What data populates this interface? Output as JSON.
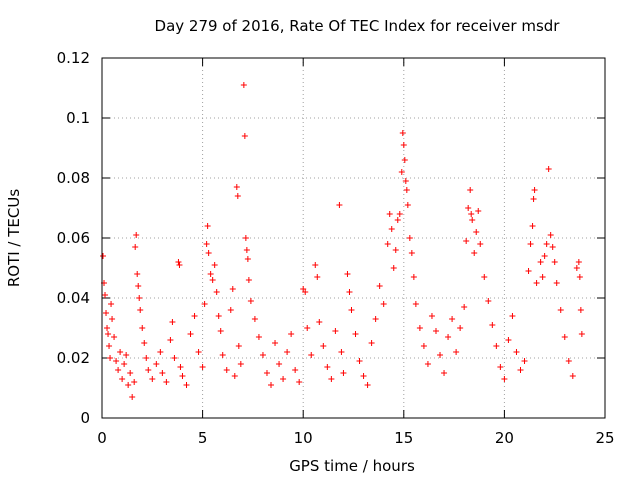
{
  "chart_data": {
    "type": "scatter",
    "title": "Day 279 of 2016, Rate Of TEC Index for receiver msdr",
    "xlabel": "GPS time / hours",
    "ylabel": "ROTI / TECUs",
    "xlim": [
      0,
      25
    ],
    "ylim": [
      0,
      0.12
    ],
    "x_ticks": [
      0,
      5,
      10,
      15,
      20,
      25
    ],
    "x_tick_labels": [
      "0",
      "5",
      "10",
      "15",
      "20",
      "25"
    ],
    "y_ticks": [
      0,
      0.02,
      0.04,
      0.06,
      0.08,
      0.1,
      0.12
    ],
    "y_tick_labels": [
      "0",
      "0.02",
      "0.04",
      "0.06",
      "0.08",
      "0.1",
      "0.12"
    ],
    "grid": true,
    "marker": "+",
    "color": "#ff0000",
    "series": [
      {
        "name": "ROTI",
        "points": [
          [
            0.05,
            0.054
          ],
          [
            0.1,
            0.045
          ],
          [
            0.15,
            0.041
          ],
          [
            0.2,
            0.035
          ],
          [
            0.25,
            0.03
          ],
          [
            0.3,
            0.028
          ],
          [
            0.35,
            0.024
          ],
          [
            0.4,
            0.02
          ],
          [
            0.45,
            0.038
          ],
          [
            0.5,
            0.033
          ],
          [
            0.6,
            0.027
          ],
          [
            0.7,
            0.019
          ],
          [
            0.8,
            0.016
          ],
          [
            0.9,
            0.022
          ],
          [
            1.0,
            0.013
          ],
          [
            1.1,
            0.018
          ],
          [
            1.2,
            0.021
          ],
          [
            1.3,
            0.011
          ],
          [
            1.4,
            0.015
          ],
          [
            1.5,
            0.007
          ],
          [
            1.6,
            0.012
          ],
          [
            1.65,
            0.057
          ],
          [
            1.7,
            0.061
          ],
          [
            1.75,
            0.048
          ],
          [
            1.8,
            0.044
          ],
          [
            1.85,
            0.04
          ],
          [
            1.9,
            0.036
          ],
          [
            2.0,
            0.03
          ],
          [
            2.1,
            0.025
          ],
          [
            2.2,
            0.02
          ],
          [
            2.3,
            0.016
          ],
          [
            2.5,
            0.013
          ],
          [
            2.7,
            0.018
          ],
          [
            2.9,
            0.022
          ],
          [
            3.0,
            0.015
          ],
          [
            3.2,
            0.012
          ],
          [
            3.4,
            0.026
          ],
          [
            3.5,
            0.032
          ],
          [
            3.6,
            0.02
          ],
          [
            3.8,
            0.052
          ],
          [
            3.85,
            0.051
          ],
          [
            3.9,
            0.017
          ],
          [
            4.0,
            0.014
          ],
          [
            4.2,
            0.011
          ],
          [
            4.4,
            0.028
          ],
          [
            4.6,
            0.034
          ],
          [
            4.8,
            0.022
          ],
          [
            5.0,
            0.017
          ],
          [
            5.1,
            0.038
          ],
          [
            5.2,
            0.058
          ],
          [
            5.25,
            0.064
          ],
          [
            5.3,
            0.055
          ],
          [
            5.4,
            0.048
          ],
          [
            5.5,
            0.046
          ],
          [
            5.6,
            0.051
          ],
          [
            5.7,
            0.042
          ],
          [
            5.8,
            0.034
          ],
          [
            5.9,
            0.029
          ],
          [
            6.0,
            0.021
          ],
          [
            6.2,
            0.016
          ],
          [
            6.4,
            0.036
          ],
          [
            6.5,
            0.043
          ],
          [
            6.6,
            0.014
          ],
          [
            6.7,
            0.077
          ],
          [
            6.75,
            0.074
          ],
          [
            6.8,
            0.024
          ],
          [
            6.9,
            0.018
          ],
          [
            7.05,
            0.111
          ],
          [
            7.1,
            0.094
          ],
          [
            7.15,
            0.06
          ],
          [
            7.2,
            0.056
          ],
          [
            7.25,
            0.053
          ],
          [
            7.3,
            0.046
          ],
          [
            7.4,
            0.039
          ],
          [
            7.6,
            0.033
          ],
          [
            7.8,
            0.027
          ],
          [
            8.0,
            0.021
          ],
          [
            8.2,
            0.015
          ],
          [
            8.4,
            0.011
          ],
          [
            8.6,
            0.025
          ],
          [
            8.8,
            0.018
          ],
          [
            9.0,
            0.013
          ],
          [
            9.2,
            0.022
          ],
          [
            9.4,
            0.028
          ],
          [
            9.6,
            0.016
          ],
          [
            9.8,
            0.012
          ],
          [
            10.0,
            0.043
          ],
          [
            10.1,
            0.042
          ],
          [
            10.2,
            0.03
          ],
          [
            10.4,
            0.021
          ],
          [
            10.6,
            0.051
          ],
          [
            10.7,
            0.047
          ],
          [
            10.8,
            0.032
          ],
          [
            11.0,
            0.024
          ],
          [
            11.2,
            0.017
          ],
          [
            11.4,
            0.013
          ],
          [
            11.6,
            0.029
          ],
          [
            11.8,
            0.071
          ],
          [
            11.9,
            0.022
          ],
          [
            12.0,
            0.015
          ],
          [
            12.2,
            0.048
          ],
          [
            12.3,
            0.042
          ],
          [
            12.4,
            0.036
          ],
          [
            12.6,
            0.028
          ],
          [
            12.8,
            0.019
          ],
          [
            13.0,
            0.014
          ],
          [
            13.2,
            0.011
          ],
          [
            13.4,
            0.025
          ],
          [
            13.6,
            0.033
          ],
          [
            13.8,
            0.044
          ],
          [
            14.0,
            0.038
          ],
          [
            14.2,
            0.058
          ],
          [
            14.3,
            0.068
          ],
          [
            14.4,
            0.063
          ],
          [
            14.5,
            0.05
          ],
          [
            14.6,
            0.056
          ],
          [
            14.7,
            0.066
          ],
          [
            14.8,
            0.068
          ],
          [
            14.9,
            0.082
          ],
          [
            14.95,
            0.095
          ],
          [
            15.0,
            0.091
          ],
          [
            15.05,
            0.086
          ],
          [
            15.1,
            0.079
          ],
          [
            15.15,
            0.076
          ],
          [
            15.2,
            0.071
          ],
          [
            15.3,
            0.06
          ],
          [
            15.4,
            0.055
          ],
          [
            15.5,
            0.047
          ],
          [
            15.6,
            0.038
          ],
          [
            15.8,
            0.03
          ],
          [
            16.0,
            0.024
          ],
          [
            16.2,
            0.018
          ],
          [
            16.4,
            0.034
          ],
          [
            16.6,
            0.029
          ],
          [
            16.8,
            0.021
          ],
          [
            17.0,
            0.015
          ],
          [
            17.2,
            0.027
          ],
          [
            17.4,
            0.033
          ],
          [
            17.6,
            0.022
          ],
          [
            17.8,
            0.03
          ],
          [
            18.0,
            0.037
          ],
          [
            18.1,
            0.059
          ],
          [
            18.2,
            0.07
          ],
          [
            18.3,
            0.076
          ],
          [
            18.35,
            0.068
          ],
          [
            18.4,
            0.066
          ],
          [
            18.5,
            0.055
          ],
          [
            18.6,
            0.062
          ],
          [
            18.7,
            0.069
          ],
          [
            18.8,
            0.058
          ],
          [
            19.0,
            0.047
          ],
          [
            19.2,
            0.039
          ],
          [
            19.4,
            0.031
          ],
          [
            19.6,
            0.024
          ],
          [
            19.8,
            0.017
          ],
          [
            20.0,
            0.013
          ],
          [
            20.2,
            0.026
          ],
          [
            20.4,
            0.034
          ],
          [
            20.6,
            0.022
          ],
          [
            20.8,
            0.016
          ],
          [
            21.0,
            0.019
          ],
          [
            21.2,
            0.049
          ],
          [
            21.3,
            0.058
          ],
          [
            21.4,
            0.064
          ],
          [
            21.45,
            0.073
          ],
          [
            21.5,
            0.076
          ],
          [
            21.6,
            0.045
          ],
          [
            21.8,
            0.052
          ],
          [
            21.9,
            0.047
          ],
          [
            22.0,
            0.054
          ],
          [
            22.1,
            0.058
          ],
          [
            22.2,
            0.083
          ],
          [
            22.3,
            0.061
          ],
          [
            22.4,
            0.057
          ],
          [
            22.5,
            0.052
          ],
          [
            22.6,
            0.045
          ],
          [
            22.8,
            0.036
          ],
          [
            23.0,
            0.027
          ],
          [
            23.2,
            0.019
          ],
          [
            23.4,
            0.014
          ],
          [
            23.6,
            0.05
          ],
          [
            23.7,
            0.052
          ],
          [
            23.75,
            0.047
          ],
          [
            23.8,
            0.036
          ],
          [
            23.85,
            0.028
          ]
        ]
      }
    ]
  }
}
